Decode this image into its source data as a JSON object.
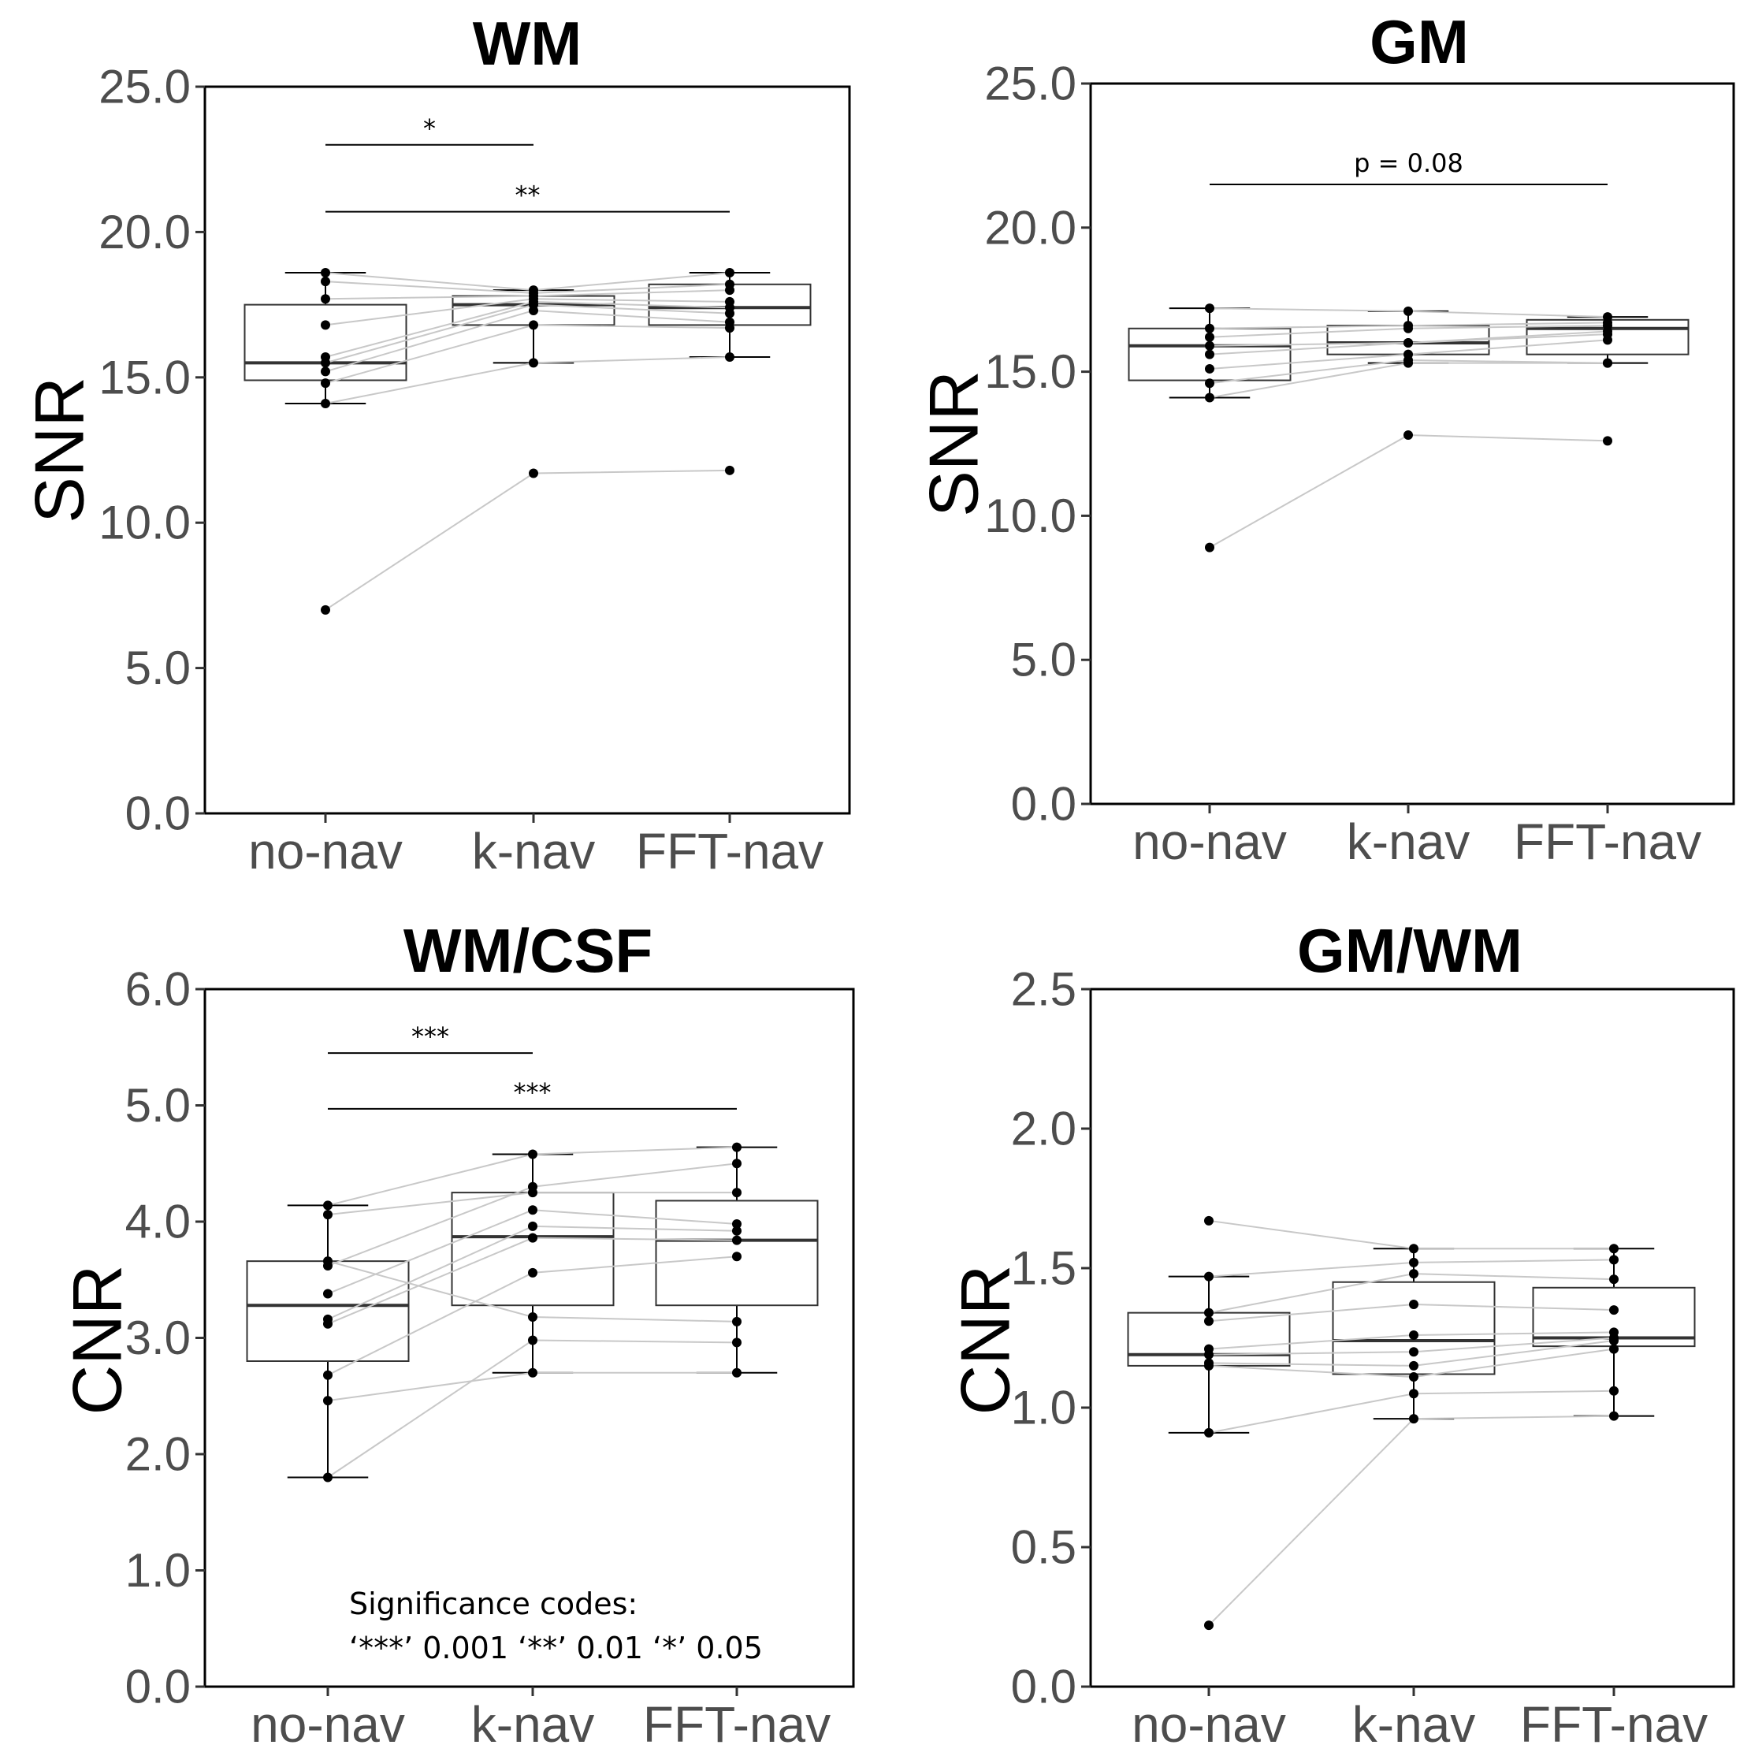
{
  "chart_data": [
    {
      "type": "box",
      "title": "WM",
      "ylabel": "SNR",
      "xlabel": "",
      "categories": [
        "no-nav",
        "k-nav",
        "FFT-nav"
      ],
      "ylim": [
        0,
        25
      ],
      "yticks": [
        0,
        5,
        10,
        15,
        20,
        25
      ],
      "ytick_labels": [
        "0.0",
        "5.0",
        "10.0",
        "15.0",
        "20.0",
        "25.0"
      ],
      "boxes": [
        {
          "category": "no-nav",
          "min": 14.1,
          "q1": 14.9,
          "median": 15.5,
          "q3": 17.5,
          "max": 18.6
        },
        {
          "category": "k-nav",
          "min": 15.5,
          "q1": 16.8,
          "median": 17.5,
          "q3": 17.8,
          "max": 18.0
        },
        {
          "category": "FFT-nav",
          "min": 15.7,
          "q1": 16.8,
          "median": 17.4,
          "q3": 18.2,
          "max": 18.6
        }
      ],
      "subjects": [
        [
          7.0,
          11.7,
          11.8
        ],
        [
          14.1,
          15.5,
          15.7
        ],
        [
          14.8,
          16.8,
          16.7
        ],
        [
          15.2,
          17.3,
          16.9
        ],
        [
          15.5,
          17.5,
          17.2
        ],
        [
          15.7,
          17.6,
          17.4
        ],
        [
          16.8,
          17.7,
          17.6
        ],
        [
          17.7,
          17.8,
          18.0
        ],
        [
          18.3,
          17.9,
          18.2
        ],
        [
          18.6,
          18.0,
          18.6
        ]
      ],
      "significance": [
        {
          "from": "no-nav",
          "to": "k-nav",
          "label": "*",
          "level": 23.0
        },
        {
          "from": "no-nav",
          "to": "FFT-nav",
          "label": "**",
          "level": 20.7
        }
      ]
    },
    {
      "type": "box",
      "title": "GM",
      "ylabel": "SNR",
      "xlabel": "",
      "categories": [
        "no-nav",
        "k-nav",
        "FFT-nav"
      ],
      "ylim": [
        0,
        25
      ],
      "yticks": [
        0,
        5,
        10,
        15,
        20,
        25
      ],
      "ytick_labels": [
        "0.0",
        "5.0",
        "10.0",
        "15.0",
        "20.0",
        "25.0"
      ],
      "boxes": [
        {
          "category": "no-nav",
          "min": 14.1,
          "q1": 14.7,
          "median": 15.9,
          "q3": 16.5,
          "max": 17.2
        },
        {
          "category": "k-nav",
          "min": 15.3,
          "q1": 15.6,
          "median": 16.0,
          "q3": 16.6,
          "max": 17.1
        },
        {
          "category": "FFT-nav",
          "min": 15.3,
          "q1": 15.6,
          "median": 16.5,
          "q3": 16.8,
          "max": 16.9
        }
      ],
      "subjects": [
        [
          8.9,
          12.8,
          12.6
        ],
        [
          14.1,
          15.3,
          15.3
        ],
        [
          14.6,
          15.4,
          15.3
        ],
        [
          15.1,
          15.6,
          16.1
        ],
        [
          15.6,
          16.0,
          16.3
        ],
        [
          15.9,
          16.0,
          16.4
        ],
        [
          16.2,
          16.5,
          16.6
        ],
        [
          16.5,
          16.6,
          16.7
        ],
        [
          17.2,
          17.1,
          16.9
        ]
      ],
      "significance": [
        {
          "from": "no-nav",
          "to": "FFT-nav",
          "label": "p = 0.08",
          "level": 21.5
        }
      ]
    },
    {
      "type": "box",
      "title": "WM/CSF",
      "ylabel": "CNR",
      "xlabel": "",
      "categories": [
        "no-nav",
        "k-nav",
        "FFT-nav"
      ],
      "ylim": [
        0,
        6
      ],
      "yticks": [
        0,
        1,
        2,
        3,
        4,
        5,
        6
      ],
      "ytick_labels": [
        "0.0",
        "1.0",
        "2.0",
        "3.0",
        "4.0",
        "5.0",
        "6.0"
      ],
      "boxes": [
        {
          "category": "no-nav",
          "min": 1.8,
          "q1": 2.8,
          "median": 3.28,
          "q3": 3.66,
          "max": 4.14
        },
        {
          "category": "k-nav",
          "min": 2.7,
          "q1": 3.28,
          "median": 3.87,
          "q3": 4.25,
          "max": 4.58
        },
        {
          "category": "FFT-nav",
          "min": 2.7,
          "q1": 3.28,
          "median": 3.84,
          "q3": 4.18,
          "max": 4.64
        }
      ],
      "subjects": [
        [
          1.8,
          2.98,
          2.96
        ],
        [
          2.46,
          2.7,
          2.7
        ],
        [
          2.68,
          3.56,
          3.7
        ],
        [
          3.12,
          3.86,
          3.84
        ],
        [
          3.16,
          3.96,
          3.92
        ],
        [
          3.38,
          4.1,
          3.98
        ],
        [
          3.62,
          4.3,
          4.5
        ],
        [
          3.66,
          3.18,
          3.14
        ],
        [
          4.06,
          4.25,
          4.25
        ],
        [
          4.14,
          4.58,
          4.64
        ]
      ],
      "significance": [
        {
          "from": "no-nav",
          "to": "k-nav",
          "label": "***",
          "level": 5.45
        },
        {
          "from": "no-nav",
          "to": "FFT-nav",
          "label": "***",
          "level": 4.97
        }
      ],
      "annotation": {
        "line1": "Significance codes:",
        "line2": "‘***’ 0.001 ‘**’ 0.01 ‘*’ 0.05"
      }
    },
    {
      "type": "box",
      "title": "GM/WM",
      "ylabel": "CNR",
      "xlabel": "",
      "categories": [
        "no-nav",
        "k-nav",
        "FFT-nav"
      ],
      "ylim": [
        0,
        2.5
      ],
      "yticks": [
        0,
        0.5,
        1.0,
        1.5,
        2.0,
        2.5
      ],
      "ytick_labels": [
        "0.0",
        "0.5",
        "1.0",
        "1.5",
        "2.0",
        "2.5"
      ],
      "boxes": [
        {
          "category": "no-nav",
          "min": 0.91,
          "q1": 1.15,
          "median": 1.19,
          "q3": 1.34,
          "max": 1.47
        },
        {
          "category": "k-nav",
          "min": 0.96,
          "q1": 1.12,
          "median": 1.24,
          "q3": 1.45,
          "max": 1.57
        },
        {
          "category": "FFT-nav",
          "min": 0.97,
          "q1": 1.22,
          "median": 1.25,
          "q3": 1.43,
          "max": 1.57
        }
      ],
      "subjects": [
        [
          0.22,
          0.96,
          0.97
        ],
        [
          0.91,
          1.05,
          1.06
        ],
        [
          1.15,
          1.11,
          1.21
        ],
        [
          1.16,
          1.15,
          1.24
        ],
        [
          1.19,
          1.2,
          1.25
        ],
        [
          1.21,
          1.26,
          1.27
        ],
        [
          1.31,
          1.37,
          1.35
        ],
        [
          1.34,
          1.48,
          1.46
        ],
        [
          1.47,
          1.52,
          1.53
        ],
        [
          1.67,
          1.57,
          1.57
        ]
      ],
      "significance": []
    }
  ]
}
